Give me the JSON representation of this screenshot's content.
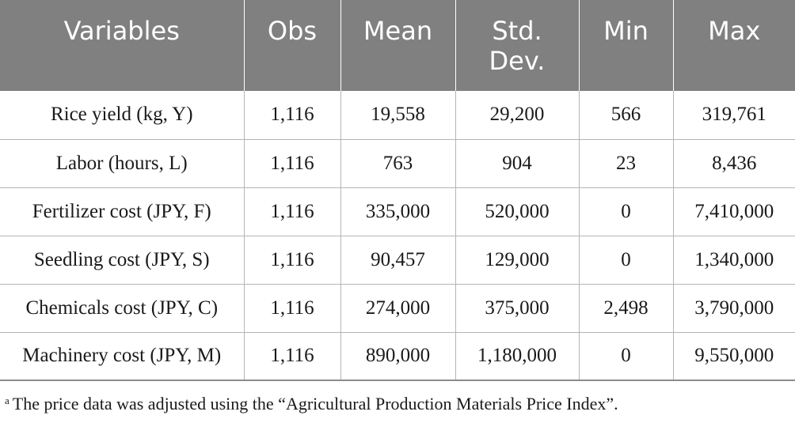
{
  "table": {
    "headers": [
      {
        "line1": "Variables",
        "line2": ""
      },
      {
        "line1": "Obs",
        "line2": ""
      },
      {
        "line1": "Mean",
        "line2": ""
      },
      {
        "line1": "Std.",
        "line2": "Dev."
      },
      {
        "line1": "Min",
        "line2": ""
      },
      {
        "line1": "Max",
        "line2": ""
      }
    ],
    "rows": [
      {
        "variable": "Rice yield (kg, Y)",
        "obs": "1,116",
        "mean": "19,558",
        "sd": "29,200",
        "min": "566",
        "max": "319,761"
      },
      {
        "variable": "Labor (hours, L)",
        "obs": "1,116",
        "mean": "763",
        "sd": "904",
        "min": "23",
        "max": "8,436"
      },
      {
        "variable": "Fertilizer cost (JPY, F)",
        "obs": "1,116",
        "mean": "335,000",
        "sd": "520,000",
        "min": "0",
        "max": "7,410,000"
      },
      {
        "variable": "Seedling cost (JPY, S)",
        "obs": "1,116",
        "mean": "90,457",
        "sd": "129,000",
        "min": "0",
        "max": "1,340,000"
      },
      {
        "variable": "Chemicals cost (JPY, C)",
        "obs": "1,116",
        "mean": "274,000",
        "sd": "375,000",
        "min": "2,498",
        "max": "3,790,000"
      },
      {
        "variable": "Machinery cost (JPY, M)",
        "obs": "1,116",
        "mean": "890,000",
        "sd": "1,180,000",
        "min": "0",
        "max": "9,550,000"
      }
    ]
  },
  "footnote": {
    "marker": "a",
    "text": "The price data was adjusted using the “Agricultural Production Materials Price Index”."
  },
  "colors": {
    "header_bg": "#808080",
    "header_text": "#ffffff",
    "grid_line": "#b5b5b5"
  }
}
